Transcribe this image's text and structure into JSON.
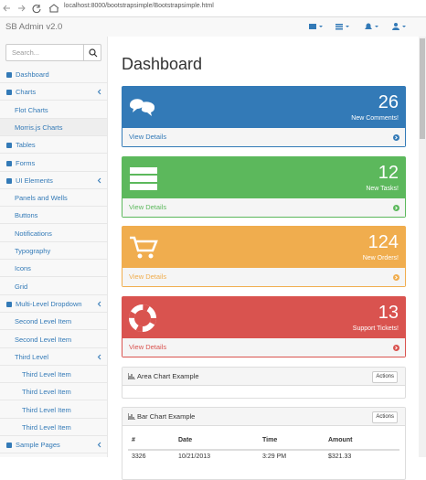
{
  "browser": {
    "url": "localhost:8000/bootstrapsimple/Bootstrapsimple.html"
  },
  "navbar": {
    "brand": "SB Admin v2.0"
  },
  "sidebar": {
    "search_placeholder": "Search...",
    "items": [
      {
        "label": "Dashboard"
      },
      {
        "label": "Charts",
        "children": [
          {
            "label": "Flot Charts"
          },
          {
            "label": "Morris.js Charts",
            "active": true
          }
        ]
      },
      {
        "label": "Tables"
      },
      {
        "label": "Forms"
      },
      {
        "label": "UI Elements",
        "children": [
          {
            "label": "Panels and Wells"
          },
          {
            "label": "Buttons"
          },
          {
            "label": "Notifications"
          },
          {
            "label": "Typography"
          },
          {
            "label": "Icons"
          },
          {
            "label": "Grid"
          }
        ]
      },
      {
        "label": "Multi-Level Dropdown",
        "children": [
          {
            "label": "Second Level Item"
          },
          {
            "label": "Second Level Item"
          },
          {
            "label": "Third Level",
            "children": [
              {
                "label": "Third Level Item"
              },
              {
                "label": "Third Level Item"
              },
              {
                "label": "Third Level Item"
              },
              {
                "label": "Third Level Item"
              }
            ]
          }
        ]
      },
      {
        "label": "Sample Pages",
        "children": []
      }
    ]
  },
  "main": {
    "title": "Dashboard",
    "stat_panels": [
      {
        "value": 26,
        "label": "New Comments!",
        "link": "View Details",
        "color": "#337ab7"
      },
      {
        "value": 12,
        "label": "New Tasks!",
        "link": "View Details",
        "color": "#5cb85c"
      },
      {
        "value": 124,
        "label": "New Orders!",
        "link": "View Details",
        "color": "#f0ad4e"
      },
      {
        "value": 13,
        "label": "Support Tickets!",
        "link": "View Details",
        "color": "#d9534f"
      }
    ],
    "chart_panels": [
      {
        "title": "Area Chart Example",
        "button": "Actions"
      },
      {
        "title": "Bar Chart Example",
        "button": "Actions",
        "table": {
          "columns": [
            "#",
            "Date",
            "Time",
            "Amount"
          ],
          "rows": [
            [
              "3326",
              "10/21/2013",
              "3:29 PM",
              "$321.33"
            ]
          ]
        }
      }
    ]
  }
}
